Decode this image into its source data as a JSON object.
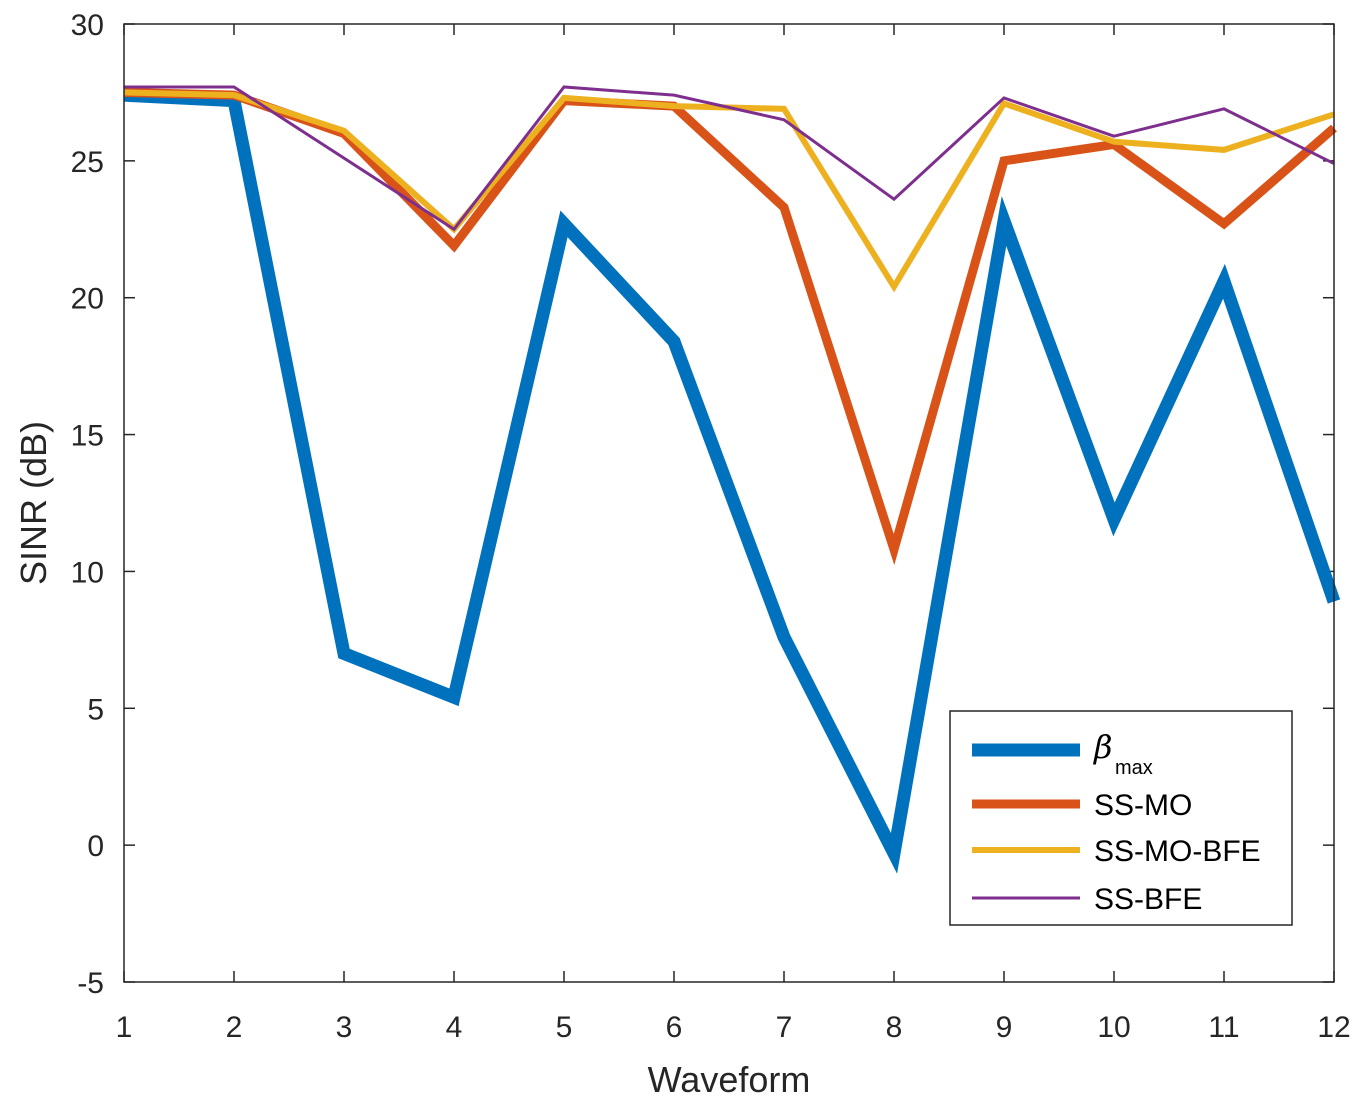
{
  "chart_data": {
    "type": "line",
    "title": "",
    "xlabel": "Waveform",
    "ylabel": "SINR (dB)",
    "xlim": [
      1,
      12
    ],
    "ylim": [
      -5,
      30
    ],
    "xticks": [
      1,
      2,
      3,
      4,
      5,
      6,
      7,
      8,
      9,
      10,
      11,
      12
    ],
    "yticks": [
      -5,
      0,
      5,
      10,
      15,
      20,
      25,
      30
    ],
    "grid": false,
    "legend_position": "bottom-right",
    "x": [
      1,
      2,
      3,
      4,
      5,
      6,
      7,
      8,
      9,
      10,
      11,
      12
    ],
    "series": [
      {
        "name": "β",
        "name_subscript": "max",
        "color": "#0072BD",
        "line_weight": "thick",
        "values": [
          27.4,
          27.2,
          7.0,
          5.4,
          22.7,
          18.4,
          7.6,
          -0.3,
          22.8,
          11.9,
          20.6,
          8.9
        ]
      },
      {
        "name": "SS-MO",
        "color": "#D95319",
        "line_weight": "medium",
        "values": [
          27.5,
          27.4,
          26.0,
          21.9,
          27.2,
          27.0,
          23.3,
          10.8,
          25.0,
          25.6,
          22.7,
          26.2
        ]
      },
      {
        "name": "SS-MO-BFE",
        "color": "#EDB120",
        "line_weight": "medium-thin",
        "values": [
          27.5,
          27.4,
          26.1,
          22.5,
          27.3,
          27.0,
          26.9,
          20.4,
          27.1,
          25.7,
          25.4,
          26.7
        ]
      },
      {
        "name": "SS-BFE",
        "color": "#7E2F8E",
        "line_weight": "thin",
        "values": [
          27.7,
          27.7,
          25.1,
          22.5,
          27.7,
          27.4,
          26.5,
          23.6,
          27.3,
          25.9,
          26.9,
          24.9
        ]
      }
    ]
  }
}
